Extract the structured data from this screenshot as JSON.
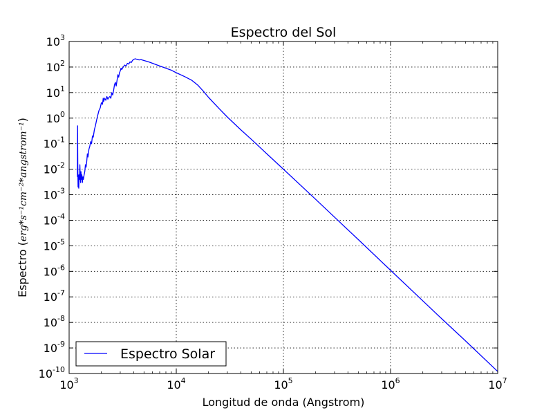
{
  "chart_data": {
    "type": "line",
    "title": "Espectro del Sol",
    "xlabel": "Longitud de onda (Angstrom)",
    "ylabel": {
      "text": "Espectro (",
      "units_math": "erg*s⁻¹cm⁻²*angstrom⁻¹",
      "close": ")"
    },
    "x_scale": "log",
    "y_scale": "log",
    "xlim": [
      1000,
      10000000
    ],
    "ylim": [
      1e-10,
      1000
    ],
    "x_ticks": [
      {
        "value": 1000,
        "base": "10",
        "exp": "3"
      },
      {
        "value": 10000,
        "base": "10",
        "exp": "4"
      },
      {
        "value": 100000,
        "base": "10",
        "exp": "5"
      },
      {
        "value": 1000000,
        "base": "10",
        "exp": "6"
      },
      {
        "value": 10000000,
        "base": "10",
        "exp": "7"
      }
    ],
    "y_ticks": [
      {
        "value": 1e-10,
        "base": "10",
        "exp": "-10"
      },
      {
        "value": 1e-09,
        "base": "10",
        "exp": "-9"
      },
      {
        "value": 1e-08,
        "base": "10",
        "exp": "-8"
      },
      {
        "value": 1e-07,
        "base": "10",
        "exp": "-7"
      },
      {
        "value": 1e-06,
        "base": "10",
        "exp": "-6"
      },
      {
        "value": 1e-05,
        "base": "10",
        "exp": "-5"
      },
      {
        "value": 0.0001,
        "base": "10",
        "exp": "-4"
      },
      {
        "value": 0.001,
        "base": "10",
        "exp": "-3"
      },
      {
        "value": 0.01,
        "base": "10",
        "exp": "-2"
      },
      {
        "value": 0.1,
        "base": "10",
        "exp": "-1"
      },
      {
        "value": 1,
        "base": "10",
        "exp": "0"
      },
      {
        "value": 10,
        "base": "10",
        "exp": "1"
      },
      {
        "value": 100,
        "base": "10",
        "exp": "2"
      },
      {
        "value": 1000,
        "base": "10",
        "exp": "3"
      }
    ],
    "grid": true,
    "legend_position": "lower-left",
    "series": [
      {
        "name": "Espectro Solar",
        "color": "#0000ff",
        "x": [
          1195,
          1200,
          1206,
          1212,
          1216,
          1222,
          1230,
          1240,
          1250,
          1260,
          1270,
          1280,
          1290,
          1300,
          1315,
          1330,
          1345,
          1360,
          1380,
          1400,
          1420,
          1440,
          1460,
          1480,
          1500,
          1530,
          1560,
          1590,
          1620,
          1650,
          1680,
          1720,
          1760,
          1800,
          1850,
          1900,
          1950,
          2000,
          2050,
          2080,
          2100,
          2150,
          2200,
          2250,
          2300,
          2350,
          2400,
          2450,
          2500,
          2550,
          2600,
          2650,
          2700,
          2750,
          2800,
          2850,
          2900,
          2950,
          3000,
          3050,
          3100,
          3200,
          3300,
          3400,
          3500,
          3600,
          3700,
          3800,
          3900,
          4000,
          4150,
          4300,
          4500,
          4700,
          5000,
          5500,
          6000,
          7000,
          8000,
          9000,
          10000,
          12000,
          14000,
          16000,
          18000,
          20000,
          25000,
          30000,
          40000,
          50000,
          70000,
          100000,
          200000,
          500000,
          1000000,
          2000000,
          3000000,
          5000000,
          10000000
        ],
        "y": [
          0.005,
          0.5,
          0.008,
          0.002,
          0.006,
          0.003,
          0.0018,
          0.006,
          0.004,
          0.015,
          0.005,
          0.003,
          0.008,
          0.004,
          0.006,
          0.003,
          0.005,
          0.004,
          0.006,
          0.008,
          0.015,
          0.012,
          0.02,
          0.04,
          0.03,
          0.06,
          0.08,
          0.12,
          0.1,
          0.2,
          0.18,
          0.35,
          0.5,
          0.8,
          1.3,
          2.0,
          2.5,
          4.0,
          3.5,
          6.0,
          4.5,
          6.0,
          5.0,
          7.0,
          5.5,
          6.5,
          7.0,
          6.0,
          10,
          8,
          12,
          20,
          25,
          18,
          30,
          50,
          40,
          60,
          70,
          90,
          80,
          100,
          120,
          110,
          140,
          130,
          160,
          150,
          180,
          200,
          210,
          200,
          190,
          195,
          180,
          160,
          140,
          110,
          90,
          75,
          60,
          42,
          30,
          19,
          11,
          6.5,
          2.4,
          1.1,
          0.35,
          0.15,
          0.04,
          0.01,
          0.00066,
          1.75e-05,
          1.1e-06,
          7e-08,
          1.4e-08,
          1.9e-09,
          1.2e-10
        ]
      }
    ]
  }
}
